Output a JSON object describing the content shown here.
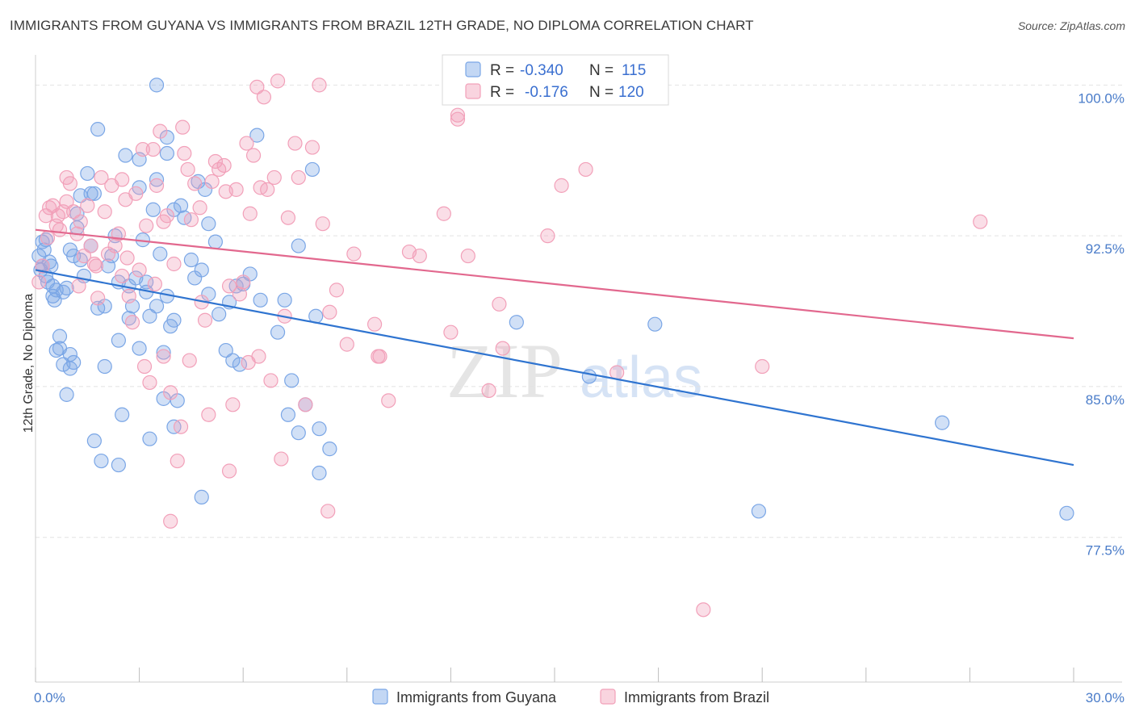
{
  "title": "IMMIGRANTS FROM GUYANA VS IMMIGRANTS FROM BRAZIL 12TH GRADE, NO DIPLOMA CORRELATION CHART",
  "source": "Source: ZipAtlas.com",
  "watermark": {
    "zip": "ZIP",
    "atlas": "atlas"
  },
  "chart_data": {
    "type": "scatter",
    "title": "IMMIGRANTS FROM GUYANA VS IMMIGRANTS FROM BRAZIL 12TH GRADE, NO DIPLOMA CORRELATION CHART",
    "xlabel": "",
    "ylabel": "12th Grade, No Diploma",
    "xlim": [
      0,
      30
    ],
    "ylim": [
      70.3,
      101.5
    ],
    "x_tick_labels": [
      "0.0%",
      "30.0%"
    ],
    "y_ticks": [
      77.5,
      85.0,
      92.5,
      100.0
    ],
    "y_tick_labels": [
      "77.5%",
      "85.0%",
      "92.5%",
      "100.0%"
    ],
    "grid": true,
    "legend_placement": "top-center",
    "series": [
      {
        "name": "Immigrants from Guyana",
        "color": "#7aa6e6",
        "line_color": "#2f74d0",
        "R": "-0.340",
        "N": "115",
        "trend": {
          "x": [
            0,
            30
          ],
          "y": [
            90.8,
            81.1
          ]
        },
        "points": [
          [
            0.1,
            91.5
          ],
          [
            0.2,
            92.2
          ],
          [
            0.2,
            91.0
          ],
          [
            0.3,
            90.5
          ],
          [
            0.3,
            92.3
          ],
          [
            0.4,
            91.2
          ],
          [
            0.5,
            89.5
          ],
          [
            0.5,
            90.0
          ],
          [
            0.6,
            89.8
          ],
          [
            0.6,
            86.8
          ],
          [
            0.7,
            87.5
          ],
          [
            0.7,
            86.9
          ],
          [
            0.8,
            86.1
          ],
          [
            0.9,
            84.6
          ],
          [
            0.9,
            89.9
          ],
          [
            1.0,
            85.9
          ],
          [
            1.0,
            86.6
          ],
          [
            1.1,
            86.2
          ],
          [
            1.1,
            91.5
          ],
          [
            1.2,
            92.9
          ],
          [
            1.2,
            93.6
          ],
          [
            1.3,
            91.3
          ],
          [
            1.4,
            90.5
          ],
          [
            1.5,
            95.6
          ],
          [
            1.6,
            94.6
          ],
          [
            1.7,
            94.6
          ],
          [
            1.7,
            82.3
          ],
          [
            1.8,
            97.8
          ],
          [
            1.8,
            88.9
          ],
          [
            1.9,
            81.3
          ],
          [
            2.0,
            86.0
          ],
          [
            2.2,
            91.5
          ],
          [
            2.3,
            92.5
          ],
          [
            2.4,
            81.1
          ],
          [
            2.4,
            87.3
          ],
          [
            2.5,
            83.6
          ],
          [
            2.6,
            96.5
          ],
          [
            2.7,
            90.0
          ],
          [
            2.8,
            89.0
          ],
          [
            2.9,
            90.4
          ],
          [
            3.0,
            96.3
          ],
          [
            3.0,
            94.9
          ],
          [
            3.0,
            86.9
          ],
          [
            3.1,
            92.3
          ],
          [
            3.2,
            89.7
          ],
          [
            3.3,
            88.5
          ],
          [
            3.3,
            82.4
          ],
          [
            3.4,
            93.8
          ],
          [
            3.5,
            100.0
          ],
          [
            3.5,
            95.3
          ],
          [
            3.6,
            91.6
          ],
          [
            3.7,
            86.7
          ],
          [
            3.7,
            84.4
          ],
          [
            3.8,
            97.4
          ],
          [
            3.8,
            89.5
          ],
          [
            3.9,
            88.0
          ],
          [
            4.0,
            83.0
          ],
          [
            4.0,
            88.3
          ],
          [
            4.0,
            93.8
          ],
          [
            4.1,
            84.3
          ],
          [
            4.3,
            93.4
          ],
          [
            4.6,
            90.4
          ],
          [
            4.7,
            95.2
          ],
          [
            4.8,
            90.8
          ],
          [
            4.8,
            79.5
          ],
          [
            5.0,
            93.1
          ],
          [
            5.0,
            89.6
          ],
          [
            5.2,
            92.2
          ],
          [
            5.5,
            86.8
          ],
          [
            5.6,
            89.2
          ],
          [
            5.8,
            90.0
          ],
          [
            5.9,
            86.1
          ],
          [
            6.2,
            90.6
          ],
          [
            6.4,
            97.5
          ],
          [
            7.2,
            89.3
          ],
          [
            7.3,
            83.6
          ],
          [
            7.4,
            85.3
          ],
          [
            7.6,
            92.0
          ],
          [
            7.6,
            82.7
          ],
          [
            8.0,
            95.8
          ],
          [
            8.1,
            88.5
          ],
          [
            8.2,
            80.7
          ],
          [
            8.2,
            82.9
          ],
          [
            8.5,
            81.9
          ],
          [
            13.9,
            88.2
          ],
          [
            16.0,
            85.5
          ],
          [
            17.9,
            88.1
          ],
          [
            20.9,
            78.8
          ],
          [
            26.2,
            83.2
          ],
          [
            29.8,
            78.7
          ],
          [
            0.15,
            90.8
          ],
          [
            0.25,
            91.8
          ],
          [
            0.35,
            90.2
          ],
          [
            0.45,
            91.0
          ],
          [
            0.55,
            89.3
          ],
          [
            0.8,
            89.7
          ],
          [
            1.0,
            91.8
          ],
          [
            1.3,
            94.5
          ],
          [
            1.6,
            92.0
          ],
          [
            2.0,
            89.0
          ],
          [
            2.1,
            91.0
          ],
          [
            2.4,
            90.2
          ],
          [
            2.7,
            88.4
          ],
          [
            3.2,
            90.2
          ],
          [
            3.5,
            89.0
          ],
          [
            4.2,
            94.0
          ],
          [
            4.5,
            91.3
          ],
          [
            5.3,
            88.6
          ],
          [
            5.7,
            86.3
          ],
          [
            6.0,
            90.1
          ],
          [
            6.5,
            89.3
          ],
          [
            7.0,
            87.7
          ],
          [
            7.8,
            84.1
          ],
          [
            4.9,
            94.8
          ],
          [
            3.8,
            96.6
          ]
        ]
      },
      {
        "name": "Immigrants from Brazil",
        "color": "#f2a0b9",
        "line_color": "#e2688e",
        "R": "-0.176",
        "N": "120",
        "trend": {
          "x": [
            0,
            30
          ],
          "y": [
            92.8,
            87.4
          ]
        },
        "points": [
          [
            0.1,
            90.2
          ],
          [
            0.2,
            91.0
          ],
          [
            0.3,
            93.5
          ],
          [
            0.4,
            93.9
          ],
          [
            0.5,
            94.0
          ],
          [
            0.6,
            93.0
          ],
          [
            0.7,
            92.8
          ],
          [
            0.8,
            93.7
          ],
          [
            0.9,
            94.2
          ],
          [
            1.0,
            95.1
          ],
          [
            1.1,
            93.7
          ],
          [
            1.2,
            92.6
          ],
          [
            1.3,
            93.2
          ],
          [
            1.4,
            91.5
          ],
          [
            1.5,
            94.0
          ],
          [
            1.6,
            92.0
          ],
          [
            1.7,
            91.1
          ],
          [
            1.8,
            89.4
          ],
          [
            1.9,
            95.4
          ],
          [
            2.0,
            93.7
          ],
          [
            2.1,
            91.6
          ],
          [
            2.2,
            95.0
          ],
          [
            2.4,
            92.6
          ],
          [
            2.5,
            95.3
          ],
          [
            2.6,
            94.3
          ],
          [
            2.7,
            89.5
          ],
          [
            2.8,
            88.2
          ],
          [
            2.9,
            94.6
          ],
          [
            3.0,
            90.8
          ],
          [
            3.1,
            96.8
          ],
          [
            3.2,
            93.0
          ],
          [
            3.3,
            85.2
          ],
          [
            3.4,
            96.8
          ],
          [
            3.5,
            95.0
          ],
          [
            3.6,
            97.7
          ],
          [
            3.7,
            93.2
          ],
          [
            3.8,
            93.5
          ],
          [
            3.9,
            84.7
          ],
          [
            4.0,
            91.1
          ],
          [
            4.1,
            81.3
          ],
          [
            4.2,
            83.0
          ],
          [
            4.3,
            96.6
          ],
          [
            4.4,
            95.8
          ],
          [
            4.5,
            93.3
          ],
          [
            4.6,
            95.1
          ],
          [
            4.8,
            89.2
          ],
          [
            4.9,
            88.3
          ],
          [
            5.0,
            83.6
          ],
          [
            5.1,
            95.2
          ],
          [
            5.2,
            96.2
          ],
          [
            5.3,
            95.8
          ],
          [
            5.5,
            94.7
          ],
          [
            5.6,
            90.0
          ],
          [
            5.7,
            84.1
          ],
          [
            5.8,
            94.8
          ],
          [
            5.9,
            89.6
          ],
          [
            6.0,
            90.2
          ],
          [
            6.1,
            97.1
          ],
          [
            6.2,
            93.6
          ],
          [
            6.3,
            96.5
          ],
          [
            6.4,
            99.9
          ],
          [
            6.5,
            94.9
          ],
          [
            6.6,
            99.4
          ],
          [
            6.7,
            94.8
          ],
          [
            6.8,
            85.3
          ],
          [
            7.0,
            100.2
          ],
          [
            7.1,
            81.4
          ],
          [
            7.2,
            88.5
          ],
          [
            7.5,
            97.1
          ],
          [
            7.6,
            95.4
          ],
          [
            7.8,
            84.1
          ],
          [
            8.0,
            96.9
          ],
          [
            8.2,
            100.0
          ],
          [
            8.3,
            93.1
          ],
          [
            8.5,
            88.7
          ],
          [
            8.7,
            89.8
          ],
          [
            9.0,
            87.1
          ],
          [
            9.2,
            91.6
          ],
          [
            9.8,
            88.1
          ],
          [
            9.9,
            86.5
          ],
          [
            10.2,
            84.3
          ],
          [
            10.8,
            91.7
          ],
          [
            11.1,
            91.5
          ],
          [
            11.8,
            93.6
          ],
          [
            12.0,
            87.7
          ],
          [
            12.2,
            98.3
          ],
          [
            12.5,
            91.5
          ],
          [
            13.1,
            84.8
          ],
          [
            13.4,
            89.1
          ],
          [
            13.5,
            86.9
          ],
          [
            14.8,
            92.5
          ],
          [
            15.2,
            95.0
          ],
          [
            15.9,
            95.8
          ],
          [
            16.8,
            85.7
          ],
          [
            19.3,
            73.9
          ],
          [
            21.0,
            86.0
          ],
          [
            27.3,
            93.2
          ],
          [
            0.35,
            92.4
          ],
          [
            0.65,
            93.5
          ],
          [
            1.25,
            90.0
          ],
          [
            1.75,
            91.0
          ],
          [
            2.3,
            92.0
          ],
          [
            2.65,
            91.4
          ],
          [
            3.15,
            86.0
          ],
          [
            3.45,
            90.1
          ],
          [
            4.25,
            97.9
          ],
          [
            4.75,
            93.9
          ],
          [
            5.45,
            96.0
          ],
          [
            6.15,
            86.2
          ],
          [
            6.9,
            95.4
          ],
          [
            7.3,
            93.4
          ],
          [
            8.45,
            78.8
          ],
          [
            12.2,
            98.5
          ],
          [
            3.9,
            78.3
          ],
          [
            2.5,
            90.5
          ],
          [
            3.7,
            86.5
          ],
          [
            4.45,
            86.3
          ],
          [
            5.6,
            80.8
          ],
          [
            6.45,
            86.5
          ],
          [
            9.95,
            86.5
          ],
          [
            0.9,
            95.4
          ]
        ]
      }
    ]
  },
  "legend": {
    "r_label": "R =",
    "n_label": "N ="
  }
}
